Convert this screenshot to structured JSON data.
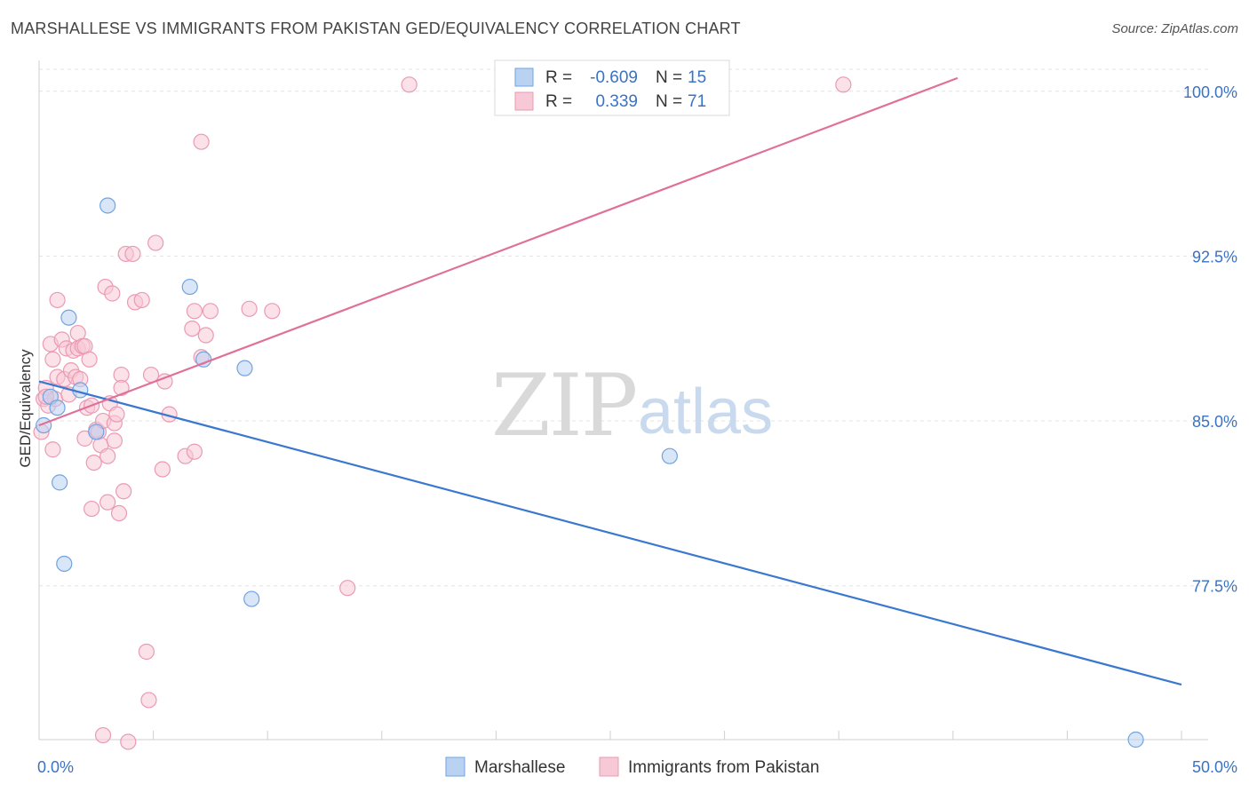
{
  "header": {
    "title": "MARSHALLESE VS IMMIGRANTS FROM PAKISTAN GED/EQUIVALENCY CORRELATION CHART",
    "source": "Source: ZipAtlas.com"
  },
  "watermark": {
    "zip": "ZIP",
    "atlas": "atlas"
  },
  "chart_data": {
    "type": "scatter",
    "title": "MARSHALLESE VS IMMIGRANTS FROM PAKISTAN GED/EQUIVALENCY CORRELATION CHART",
    "xlabel": "",
    "ylabel": "GED/Equivalency",
    "xlim": [
      0,
      50
    ],
    "ylim": [
      70.5,
      101
    ],
    "x_tick_labels": [
      "0.0%",
      "50.0%"
    ],
    "y_ticks": [
      100.0,
      92.5,
      85.0,
      77.5
    ],
    "y_tick_labels": [
      "100.0%",
      "92.5%",
      "85.0%",
      "77.5%"
    ],
    "grid": true,
    "legend_placement": "top-center",
    "series": [
      {
        "name": "Marshallese",
        "color": "#6fa4e0",
        "fill": "#b9d2f2",
        "line_color": "#3a78d0",
        "R": "-0.609",
        "N": "15",
        "trend": [
          [
            0,
            86.8
          ],
          [
            50,
            73.0
          ]
        ],
        "points": [
          [
            0.2,
            84.8
          ],
          [
            0.5,
            86.1
          ],
          [
            0.8,
            85.6
          ],
          [
            0.9,
            82.2
          ],
          [
            1.1,
            78.5
          ],
          [
            1.3,
            89.7
          ],
          [
            1.8,
            86.4
          ],
          [
            2.5,
            84.5
          ],
          [
            3.0,
            94.8
          ],
          [
            6.6,
            91.1
          ],
          [
            7.2,
            87.8
          ],
          [
            9.0,
            87.4
          ],
          [
            9.3,
            76.9
          ],
          [
            27.6,
            83.4
          ],
          [
            48.0,
            70.5
          ]
        ]
      },
      {
        "name": "Immigrants from Pakistan",
        "color": "#eb9ab4",
        "fill": "#f7c8d6",
        "line_color": "#e0709a",
        "R": "0.339",
        "N": "71",
        "trend": [
          [
            0,
            84.8
          ],
          [
            40.2,
            100.6
          ]
        ],
        "points": [
          [
            0.1,
            84.5
          ],
          [
            0.2,
            86.0
          ],
          [
            0.3,
            86.5
          ],
          [
            0.4,
            85.7
          ],
          [
            0.5,
            88.5
          ],
          [
            0.6,
            83.7
          ],
          [
            0.6,
            87.8
          ],
          [
            0.7,
            86.0
          ],
          [
            0.8,
            87.0
          ],
          [
            0.8,
            90.5
          ],
          [
            1.0,
            88.7
          ],
          [
            1.1,
            86.9
          ],
          [
            1.2,
            88.3
          ],
          [
            1.3,
            86.2
          ],
          [
            1.4,
            87.3
          ],
          [
            1.5,
            88.2
          ],
          [
            1.6,
            87.0
          ],
          [
            1.7,
            88.3
          ],
          [
            1.7,
            89.0
          ],
          [
            1.8,
            86.9
          ],
          [
            1.9,
            88.4
          ],
          [
            2.0,
            88.4
          ],
          [
            2.0,
            84.2
          ],
          [
            2.1,
            85.6
          ],
          [
            2.2,
            87.8
          ],
          [
            2.3,
            85.7
          ],
          [
            2.3,
            81.0
          ],
          [
            2.4,
            83.1
          ],
          [
            2.5,
            84.6
          ],
          [
            2.6,
            84.5
          ],
          [
            2.7,
            83.9
          ],
          [
            2.8,
            85.0
          ],
          [
            2.8,
            70.7
          ],
          [
            2.9,
            91.1
          ],
          [
            3.0,
            83.4
          ],
          [
            3.0,
            81.3
          ],
          [
            3.1,
            85.8
          ],
          [
            3.2,
            90.8
          ],
          [
            3.3,
            84.9
          ],
          [
            3.3,
            84.1
          ],
          [
            3.4,
            85.3
          ],
          [
            3.5,
            80.8
          ],
          [
            3.6,
            87.1
          ],
          [
            3.6,
            86.5
          ],
          [
            3.7,
            81.8
          ],
          [
            3.8,
            92.6
          ],
          [
            3.9,
            70.4
          ],
          [
            4.1,
            92.6
          ],
          [
            4.2,
            90.4
          ],
          [
            4.5,
            90.5
          ],
          [
            4.7,
            74.5
          ],
          [
            4.8,
            72.3
          ],
          [
            4.9,
            87.1
          ],
          [
            5.1,
            93.1
          ],
          [
            5.4,
            82.8
          ],
          [
            5.5,
            86.8
          ],
          [
            5.7,
            85.3
          ],
          [
            6.4,
            83.4
          ],
          [
            6.7,
            89.2
          ],
          [
            6.8,
            90.0
          ],
          [
            6.8,
            83.6
          ],
          [
            7.1,
            87.9
          ],
          [
            7.1,
            97.7
          ],
          [
            7.3,
            88.9
          ],
          [
            7.5,
            90.0
          ],
          [
            9.2,
            90.1
          ],
          [
            10.2,
            90.0
          ],
          [
            13.5,
            77.4
          ],
          [
            16.2,
            100.3
          ],
          [
            35.2,
            100.3
          ],
          [
            0.3,
            86.1
          ]
        ]
      }
    ]
  }
}
